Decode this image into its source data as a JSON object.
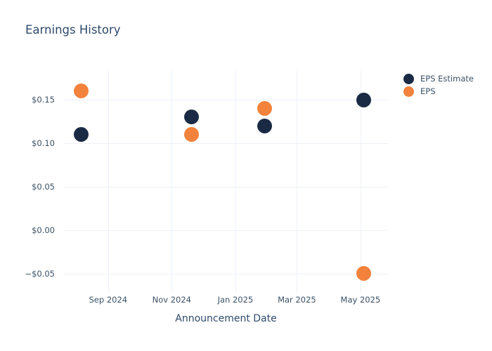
{
  "chart_data": {
    "type": "scatter",
    "title": "Earnings History",
    "xlabel": "Announcement Date",
    "ylabel": "",
    "grid": true,
    "legend_position": "top-right",
    "background": "#ffffff",
    "gridline_color": "#edf1f7",
    "text_color": "#2e4a6b",
    "xlim": [
      "2024-07-20",
      "2025-05-28"
    ],
    "ylim": [
      -0.072,
      0.184
    ],
    "y_ticks": [
      {
        "value": 0.15,
        "label": "$0.15"
      },
      {
        "value": 0.1,
        "label": "$0.10"
      },
      {
        "value": 0.05,
        "label": "$0.05"
      },
      {
        "value": 0.0,
        "label": "$0.00"
      },
      {
        "value": -0.05,
        "label": "−$0.05"
      }
    ],
    "x_ticks": [
      {
        "date": "2024-09-01",
        "label": "Sep 2024"
      },
      {
        "date": "2024-11-01",
        "label": "Nov 2024"
      },
      {
        "date": "2025-01-01",
        "label": "Jan 2025"
      },
      {
        "date": "2025-03-01",
        "label": "Mar 2025"
      },
      {
        "date": "2025-05-01",
        "label": "May 2025"
      }
    ],
    "series": [
      {
        "name": "EPS Estimate",
        "color": "#1b2a44",
        "points": [
          {
            "date": "2024-08-06",
            "value": 0.11
          },
          {
            "date": "2024-11-20",
            "value": 0.13
          },
          {
            "date": "2025-01-29",
            "value": 0.12
          },
          {
            "date": "2025-05-04",
            "value": 0.15
          }
        ]
      },
      {
        "name": "EPS",
        "color": "#f2823c",
        "points": [
          {
            "date": "2024-08-06",
            "value": 0.16
          },
          {
            "date": "2024-11-20",
            "value": 0.11
          },
          {
            "date": "2025-01-29",
            "value": 0.14
          },
          {
            "date": "2025-05-04",
            "value": -0.05
          }
        ]
      }
    ]
  }
}
